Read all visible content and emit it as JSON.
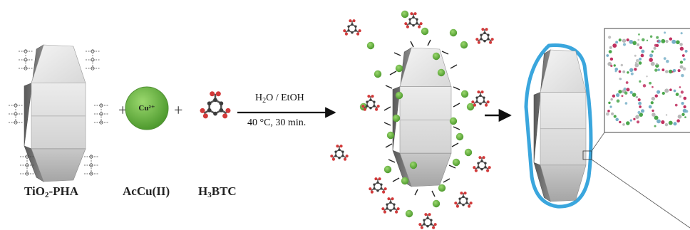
{
  "labels": {
    "tio2_main": "TiO",
    "tio2_sub": "2",
    "tio2_rest": "-PHA",
    "accu": "AcCu(II)",
    "h3btc_pre": "H",
    "h3btc_sub": "3",
    "h3btc_rest": "BTC",
    "cu_ion": "Cu²⁺",
    "plus": "+"
  },
  "conditions": {
    "solvent_a": "H",
    "solvent_a_sub": "2",
    "solvent_rest": "O / EtOH",
    "temp_time": "40 °C, 30 min."
  },
  "colors": {
    "cu_green": "#6cb845",
    "shell_blue": "#3aa6dd",
    "crystal_light": "#e9e9e9",
    "crystal_dark": "#6a6a6a",
    "btc_gray": "#555555",
    "btc_red": "#d23a3a"
  }
}
